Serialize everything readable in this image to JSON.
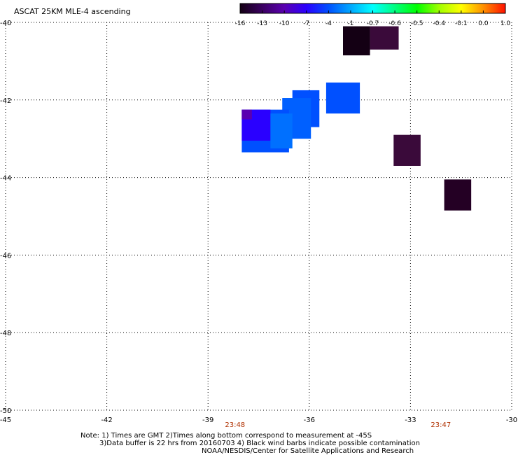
{
  "chart_data": {
    "type": "heatmap",
    "title": "ASCAT 25KM MLE-4 ascending",
    "colorbar": {
      "tick_labels": [
        "-16",
        "-13",
        "-10",
        "-7",
        "-4",
        "-1",
        "-0.7",
        "-0.6",
        "-0.5",
        "-0.4",
        "-0.1",
        "0.0",
        "1.0"
      ],
      "colors": [
        "#140014",
        "#3a0060",
        "#5a00b0",
        "#2a00ff",
        "#0050ff",
        "#00a8ff",
        "#00ffff",
        "#00ff80",
        "#00ff00",
        "#a0ff00",
        "#ffff00",
        "#ff9000",
        "#ff1000"
      ]
    },
    "x_axis": {
      "range": [
        -45,
        -30
      ],
      "ticks": [
        -45,
        -42,
        -39,
        -36,
        -33,
        -30
      ],
      "tick_labels": [
        "-45",
        "-42",
        "-39",
        "-36",
        "-33",
        "-30"
      ]
    },
    "y_axis": {
      "range": [
        -50,
        -40
      ],
      "ticks": [
        -40,
        -42,
        -44,
        -46,
        -48,
        -50
      ],
      "tick_labels": [
        "-40",
        "-42",
        "-44",
        "-46",
        "-48",
        "-50"
      ]
    },
    "grid": "dotted",
    "time_labels": [
      {
        "text": "23:48",
        "lon": -38.2
      },
      {
        "text": "23:47",
        "lon": -32.1
      }
    ],
    "cells": [
      {
        "lon0": -35.0,
        "lon1": -34.2,
        "lat0": -40.1,
        "lat1": -40.85,
        "color": "#140014"
      },
      {
        "lon0": -34.2,
        "lon1": -33.35,
        "lat0": -40.1,
        "lat1": -40.7,
        "color": "#3a0a3a"
      },
      {
        "lon0": -35.5,
        "lon1": -34.5,
        "lat0": -41.55,
        "lat1": -42.35,
        "color": "#0050ff"
      },
      {
        "lon0": -36.5,
        "lon1": -35.7,
        "lat0": -41.75,
        "lat1": -42.7,
        "color": "#0050ff"
      },
      {
        "lon0": -36.8,
        "lon1": -35.95,
        "lat0": -41.95,
        "lat1": -43.0,
        "color": "#0060ff"
      },
      {
        "lon0": -38.0,
        "lon1": -36.6,
        "lat0": -42.25,
        "lat1": -43.35,
        "color": "#0050ff"
      },
      {
        "lon0": -38.0,
        "lon1": -37.15,
        "lat0": -42.25,
        "lat1": -43.05,
        "color": "#2a00ff"
      },
      {
        "lon0": -37.15,
        "lon1": -36.5,
        "lat0": -42.35,
        "lat1": -43.25,
        "color": "#0070ff"
      },
      {
        "lon0": -38.0,
        "lon1": -37.7,
        "lat0": -42.25,
        "lat1": -42.5,
        "color": "#5a00b0"
      },
      {
        "lon0": -33.5,
        "lon1": -32.7,
        "lat0": -42.9,
        "lat1": -43.7,
        "color": "#3a0a3a"
      },
      {
        "lon0": -32.0,
        "lon1": -31.2,
        "lat0": -44.05,
        "lat1": -44.85,
        "color": "#240024"
      }
    ]
  },
  "notes": {
    "line1": "Note: 1) Times are GMT 2)Times along bottom correspond to measurement at -45S",
    "line2": "3)Data buffer is 22 hrs from 20160703 4) Black wind barbs indicate possible contamination",
    "line3": "NOAA/NESDIS/Center for Satellite Applications and Research"
  }
}
